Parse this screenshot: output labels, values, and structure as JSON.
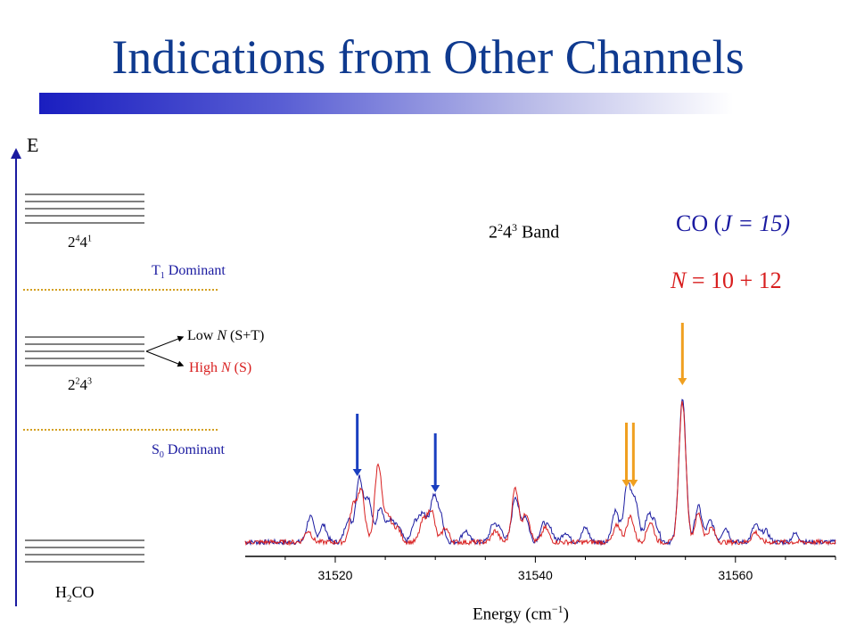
{
  "title": "Indications from Other Channels",
  "energy_levels": {
    "axis_label": "E",
    "upper_level_label_base": "2",
    "upper_level_label_sup1": "4",
    "upper_level_label_mid": "4",
    "upper_level_label_sup2": "1",
    "middle_level_label_base": "2",
    "middle_level_label_sup1": "2",
    "middle_level_label_mid": "4",
    "middle_level_label_sup2": "3",
    "ground_label_pre": "H",
    "ground_label_sub": "2",
    "ground_label_post": "CO",
    "t1_label_pre": "T",
    "t1_label_sub": "1",
    "t1_label_post": " Dominant",
    "s0_label_pre": "S",
    "s0_label_sub": "0",
    "s0_label_post": " Dominant",
    "low_n_pre": "Low ",
    "low_n_italic": "N",
    "low_n_post": " (S+T)",
    "high_n_pre": "High ",
    "high_n_italic": "N",
    "high_n_post": " (S)"
  },
  "annotations": {
    "band_pre": "2",
    "band_sup1": "2",
    "band_mid": "4",
    "band_sup2": "3",
    "band_post": " Band",
    "co_pre": "CO (",
    "co_italic": "J = 15)",
    "n_italic": "N",
    "n_post": " = 10 + 12"
  },
  "colors": {
    "blue_series": "#1a1aa0",
    "red_series": "#d81e1e",
    "blue_arrow": "#1a3fc0",
    "orange_arrow": "#f0a020",
    "dotted_line": "#d4a020"
  },
  "chart_data": {
    "type": "line",
    "xlabel_pre": "Energy (cm",
    "xlabel_sup": "−1",
    "xlabel_post": ")",
    "xlim": [
      31511,
      31570
    ],
    "xticks": [
      31520,
      31540,
      31560
    ],
    "series": [
      {
        "color": "#1a1aa0",
        "peaks": [
          {
            "x": 31517.5,
            "h": 0.18
          },
          {
            "x": 31518.8,
            "h": 0.12
          },
          {
            "x": 31521.3,
            "h": 0.16
          },
          {
            "x": 31522.4,
            "h": 0.45
          },
          {
            "x": 31523.3,
            "h": 0.3
          },
          {
            "x": 31524.5,
            "h": 0.25
          },
          {
            "x": 31525.5,
            "h": 0.15
          },
          {
            "x": 31526.3,
            "h": 0.1
          },
          {
            "x": 31528.0,
            "h": 0.14
          },
          {
            "x": 31528.8,
            "h": 0.2
          },
          {
            "x": 31529.8,
            "h": 0.3
          },
          {
            "x": 31530.5,
            "h": 0.18
          },
          {
            "x": 31533.0,
            "h": 0.08
          },
          {
            "x": 31535.8,
            "h": 0.12
          },
          {
            "x": 31536.5,
            "h": 0.08
          },
          {
            "x": 31538.0,
            "h": 0.32
          },
          {
            "x": 31539.0,
            "h": 0.18
          },
          {
            "x": 31540.8,
            "h": 0.12
          },
          {
            "x": 31541.5,
            "h": 0.08
          },
          {
            "x": 31543.0,
            "h": 0.07
          },
          {
            "x": 31545.0,
            "h": 0.1
          },
          {
            "x": 31548.0,
            "h": 0.22
          },
          {
            "x": 31549.2,
            "h": 0.4
          },
          {
            "x": 31550.0,
            "h": 0.28
          },
          {
            "x": 31551.3,
            "h": 0.18
          },
          {
            "x": 31552.0,
            "h": 0.12
          },
          {
            "x": 31554.7,
            "h": 1.0
          },
          {
            "x": 31556.3,
            "h": 0.25
          },
          {
            "x": 31557.5,
            "h": 0.15
          },
          {
            "x": 31559.0,
            "h": 0.1
          },
          {
            "x": 31562.0,
            "h": 0.12
          },
          {
            "x": 31563.0,
            "h": 0.08
          },
          {
            "x": 31566.0,
            "h": 0.06
          }
        ]
      },
      {
        "color": "#d81e1e",
        "peaks": [
          {
            "x": 31517.3,
            "h": 0.08
          },
          {
            "x": 31521.8,
            "h": 0.25
          },
          {
            "x": 31522.6,
            "h": 0.35
          },
          {
            "x": 31524.3,
            "h": 0.55
          },
          {
            "x": 31525.3,
            "h": 0.18
          },
          {
            "x": 31526.2,
            "h": 0.1
          },
          {
            "x": 31528.8,
            "h": 0.15
          },
          {
            "x": 31529.6,
            "h": 0.22
          },
          {
            "x": 31531.0,
            "h": 0.1
          },
          {
            "x": 31536.0,
            "h": 0.08
          },
          {
            "x": 31538.0,
            "h": 0.38
          },
          {
            "x": 31539.1,
            "h": 0.2
          },
          {
            "x": 31541.0,
            "h": 0.1
          },
          {
            "x": 31548.2,
            "h": 0.12
          },
          {
            "x": 31549.5,
            "h": 0.18
          },
          {
            "x": 31551.5,
            "h": 0.14
          },
          {
            "x": 31554.7,
            "h": 0.98
          },
          {
            "x": 31556.3,
            "h": 0.2
          },
          {
            "x": 31557.6,
            "h": 0.1
          },
          {
            "x": 31562.0,
            "h": 0.07
          }
        ]
      }
    ],
    "arrows": [
      {
        "x": 31522.2,
        "color": "#1a3fc0"
      },
      {
        "x": 31530.0,
        "color": "#1a3fc0"
      },
      {
        "x": 31549.1,
        "color": "#f0a020"
      },
      {
        "x": 31549.8,
        "color": "#f0a020"
      },
      {
        "x": 31554.7,
        "color": "#f0a020"
      }
    ]
  }
}
